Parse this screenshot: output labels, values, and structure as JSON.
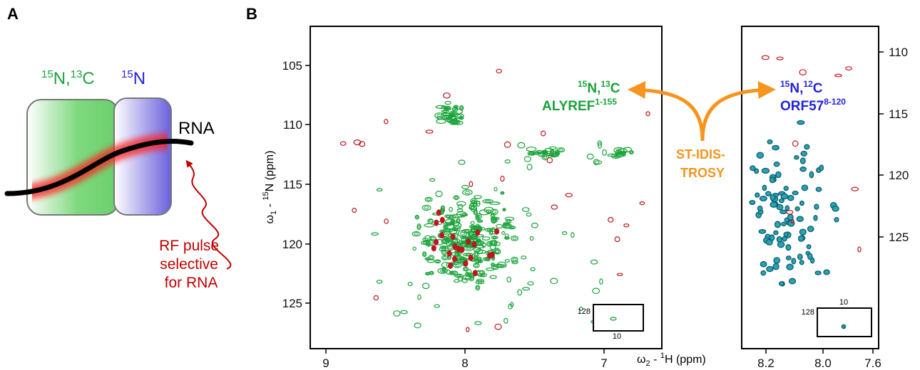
{
  "panel_a": {
    "label": "A",
    "label_double": {
      "sup1": "15",
      "text1": "N,",
      "sup2": "13",
      "text2": "C"
    },
    "label_single": {
      "sup": "15",
      "text": "N"
    },
    "rna": "RNA",
    "rf_pulse": [
      "RF pulse",
      "selective",
      "for RNA"
    ]
  },
  "panel_b": {
    "label": "B",
    "experiment": [
      "ST-IDIS-",
      "TROSY"
    ],
    "left_spectrum": {
      "y_axis_title": {
        "omega": "ω",
        "sub": "1",
        "dash": " - ",
        "sup": "15",
        "text": "N (ppm)"
      },
      "x_axis_title": {
        "omega": "ω",
        "sub": "2",
        "dash": " - ",
        "sup": "1",
        "text": "H (ppm)"
      },
      "xticks": [
        "9",
        "8",
        "7"
      ],
      "yticks": [
        "105",
        "110",
        "115",
        "120",
        "125"
      ],
      "inset": {
        "y": "128",
        "x": "10"
      },
      "sample": {
        "sup1": "15",
        "text1": "N,",
        "sup2": "13",
        "text2": "C",
        "protein": "ALYREF",
        "residues": "1-155"
      }
    },
    "right_spectrum": {
      "xticks": [
        "8.2",
        "8.0",
        "7.6"
      ],
      "yticks": [
        "110",
        "115",
        "120",
        "125"
      ],
      "inset": {
        "y": "128",
        "x": "10"
      },
      "sample": {
        "sup1": "15",
        "text1": "N,",
        "sup2": "12",
        "text2": "C",
        "protein": "ORF57",
        "residues": "8-120"
      }
    }
  }
}
